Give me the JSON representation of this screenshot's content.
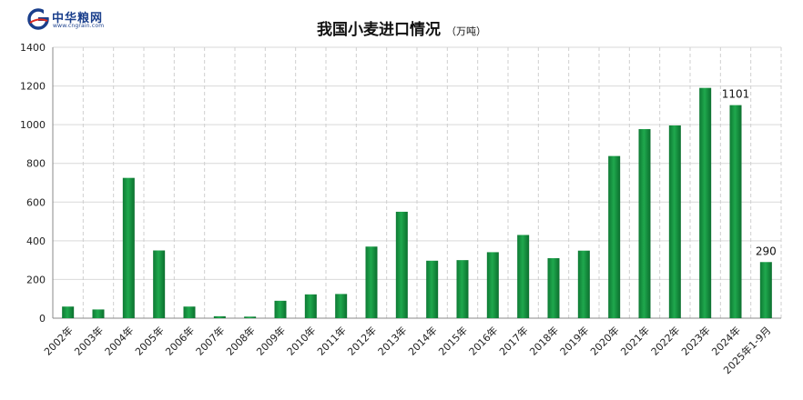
{
  "logo": {
    "name": "中华粮网",
    "url": "www.cngrain.com"
  },
  "chart_data": {
    "type": "bar",
    "title": "我国小麦进口情况",
    "title_unit": "（万吨）",
    "categories": [
      "2002年",
      "2003年",
      "2004年",
      "2005年",
      "2006年",
      "2007年",
      "2008年",
      "2009年",
      "2010年",
      "2011年",
      "2012年",
      "2013年",
      "2014年",
      "2015年",
      "2016年",
      "2017年",
      "2018年",
      "2019年",
      "2020年",
      "2021年",
      "2022年",
      "2023年",
      "2024年",
      "2025年1-9月"
    ],
    "values": [
      60,
      45,
      725,
      350,
      60,
      10,
      8,
      90,
      123,
      125,
      370,
      550,
      297,
      300,
      341,
      430,
      310,
      349,
      838,
      977,
      996,
      1190,
      1101,
      290
    ],
    "data_labels": {
      "22": "1101",
      "23": "290"
    },
    "ylim": [
      0,
      1400
    ],
    "yticks": [
      0,
      200,
      400,
      600,
      800,
      1000,
      1200,
      1400
    ],
    "grid": true,
    "bar_color": "#1fa84d"
  }
}
